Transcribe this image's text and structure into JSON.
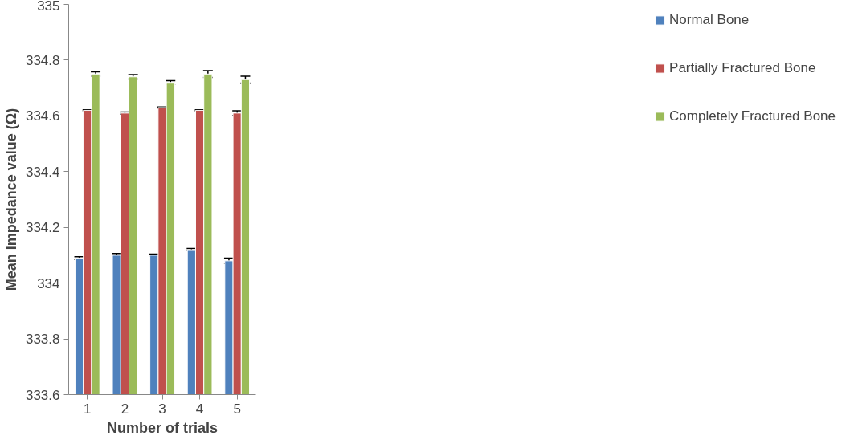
{
  "chart_data": {
    "type": "bar",
    "xlabel": "Number of trials",
    "ylabel": "Mean Impedance value (Ω)",
    "categories": [
      "1",
      "2",
      "3",
      "4",
      "5"
    ],
    "series": [
      {
        "name": "Normal Bone",
        "color": "#4f81bd",
        "values": [
          334.09,
          334.1,
          334.1,
          334.12,
          334.08
        ],
        "errors": [
          0.005,
          0.006,
          0.004,
          0.004,
          0.01
        ]
      },
      {
        "name": "Partially Fractured Bone",
        "color": "#c0504d",
        "values": [
          334.62,
          334.61,
          334.63,
          334.62,
          334.61
        ],
        "errors": [
          0.002,
          0.004,
          0.002,
          0.002,
          0.008
        ]
      },
      {
        "name": "Completely Fractured Bone",
        "color": "#9bbb59",
        "values": [
          334.75,
          334.74,
          334.72,
          334.75,
          334.73
        ],
        "errors": [
          0.008,
          0.008,
          0.006,
          0.012,
          0.012
        ]
      }
    ],
    "ylim": [
      333.6,
      335
    ],
    "yticks": [
      333.6,
      333.8,
      334,
      334.2,
      334.4,
      334.6,
      334.8,
      335
    ],
    "grid": false,
    "legend": "right"
  }
}
